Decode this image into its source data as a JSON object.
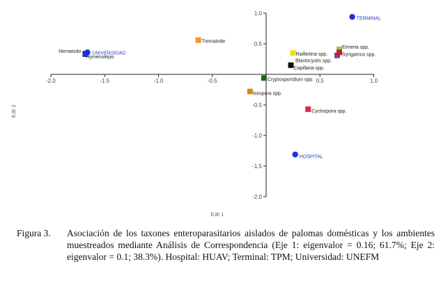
{
  "chart_data": {
    "type": "scatter",
    "xlabel": "EJE 1",
    "ylabel": "EJE 2",
    "xlim": [
      -2.0,
      1.0
    ],
    "ylim": [
      -2.0,
      1.0
    ],
    "x_ticks": [
      "-2.0",
      "-1.5",
      "-1.0",
      "-0.5",
      "0.5",
      "1.0"
    ],
    "x_tick_values": [
      -2.0,
      -1.5,
      -1.0,
      -0.5,
      0.5,
      1.0
    ],
    "y_ticks": [
      "1.0",
      "0.5",
      "-0.5",
      "-1.0",
      "-1.5",
      "-2.0"
    ],
    "y_tick_values": [
      1.0,
      0.5,
      -0.5,
      -1.0,
      -1.5,
      -2.0
    ],
    "points": [
      {
        "label": "Nematodo",
        "x": -1.68,
        "y": 0.34,
        "marker": "square",
        "color": "#2a35c8"
      },
      {
        "label": "Hymenolepis",
        "x": -1.68,
        "y": 0.33,
        "marker": "square",
        "color": "#2a35c8"
      },
      {
        "label": "UNIVERSIDAD",
        "x": -1.66,
        "y": 0.36,
        "marker": "circle",
        "color": "#1b2fe6"
      },
      {
        "label": "Trematode",
        "x": -0.63,
        "y": 0.56,
        "marker": "square",
        "color": "#f0962e"
      },
      {
        "label": "Cryptosporidium spp.",
        "x": -0.02,
        "y": -0.06,
        "marker": "square",
        "color": "#1e6b1e"
      },
      {
        "label": "Isospora spp.",
        "x": -0.15,
        "y": -0.28,
        "marker": "square",
        "color": "#c8901e"
      },
      {
        "label": "Raillietina spp.",
        "x": 0.25,
        "y": 0.35,
        "marker": "square",
        "color": "#f4dd14"
      },
      {
        "label": "Capillaria spp.",
        "x": 0.23,
        "y": 0.15,
        "marker": "square",
        "color": "#111111"
      },
      {
        "label": "Blastocystis spp.",
        "x": 0.66,
        "y": 0.31,
        "marker": "square",
        "color": "#7a3da8"
      },
      {
        "label": "Eimeria spp.",
        "x": 0.68,
        "y": 0.41,
        "marker": "square",
        "color": "#8ed24a"
      },
      {
        "label": "Syngamus spp.",
        "x": 0.68,
        "y": 0.36,
        "marker": "square",
        "color": "#c42020"
      },
      {
        "label": "TERMINAL",
        "x": 0.8,
        "y": 0.94,
        "marker": "circle",
        "color": "#1b2fe6"
      },
      {
        "label": "Cyclospora spp.",
        "x": 0.39,
        "y": -0.57,
        "marker": "square",
        "color": "#e0284c"
      },
      {
        "label": "HOSPITAL",
        "x": 0.27,
        "y": -1.31,
        "marker": "circle",
        "color": "#1b2fe6"
      }
    ]
  },
  "caption": {
    "number": "Figura 3.",
    "text": "Asociación de los taxones enteroparasitarios aislados de palomas domésticas y los ambientes muestreados mediante Análisis de Correspondencia (Eje 1: eigenvalor = 0.16; 61.7%; Eje 2: eigenvalor = 0.1; 38.3%). Hospital: HUAV; Terminal: TPM; Universidad: UNEFM"
  }
}
